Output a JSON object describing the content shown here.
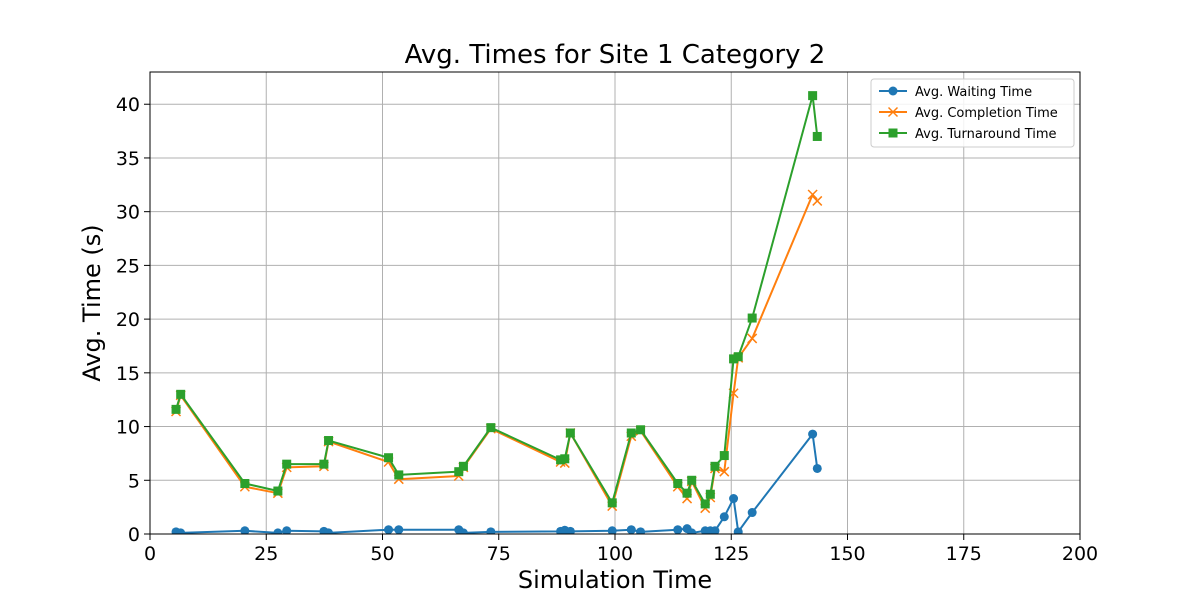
{
  "chart_data": {
    "type": "line",
    "title": "Avg. Times for Site 1 Category 2",
    "xlabel": "Simulation Time",
    "ylabel": "Avg. Time (s)",
    "xlim": [
      0,
      200
    ],
    "ylim": [
      0,
      43
    ],
    "xticks": [
      0,
      25,
      50,
      75,
      100,
      125,
      150,
      175,
      200
    ],
    "yticks": [
      0,
      5,
      10,
      15,
      20,
      25,
      30,
      35,
      40
    ],
    "grid": true,
    "legend_position": "top-right",
    "series": [
      {
        "name": "Avg. Waiting Time",
        "color": "#1f77b4",
        "marker": "circle",
        "x": [
          5.6,
          6.6,
          20.4,
          27.5,
          29.4,
          37.4,
          38.4,
          51.3,
          53.5,
          66.4,
          67.4,
          73.3,
          88.3,
          89.2,
          90.4,
          99.4,
          103.5,
          105.5,
          113.5,
          115.5,
          116.5,
          119.4,
          120.5,
          121.5,
          123.5,
          125.5,
          126.5,
          129.5,
          142.5,
          143.5
        ],
        "y": [
          0.2,
          0.1,
          0.3,
          0.1,
          0.3,
          0.25,
          0.1,
          0.4,
          0.4,
          0.4,
          0.1,
          0.2,
          0.25,
          0.35,
          0.25,
          0.3,
          0.4,
          0.2,
          0.4,
          0.5,
          0.1,
          0.3,
          0.3,
          0.3,
          1.6,
          3.3,
          0.2,
          2.0,
          9.3,
          6.1
        ]
      },
      {
        "name": "Avg. Completion Time",
        "color": "#ff7f0e",
        "marker": "x",
        "x": [
          5.6,
          6.6,
          20.4,
          27.5,
          29.4,
          37.4,
          38.4,
          51.3,
          53.5,
          66.4,
          67.4,
          73.3,
          88.3,
          89.2,
          90.4,
          99.4,
          103.5,
          105.5,
          113.5,
          115.5,
          116.5,
          119.4,
          120.5,
          121.5,
          123.5,
          125.5,
          126.5,
          129.5,
          142.5,
          143.5
        ],
        "y": [
          11.4,
          12.9,
          4.4,
          3.8,
          6.2,
          6.3,
          8.6,
          6.7,
          5.1,
          5.4,
          6.2,
          9.8,
          6.7,
          6.6,
          9.4,
          2.6,
          9.1,
          9.6,
          4.4,
          3.3,
          4.9,
          2.4,
          3.4,
          6.1,
          5.8,
          13.1,
          16.4,
          18.2,
          31.6,
          31.0
        ]
      },
      {
        "name": "Avg. Turnaround Time",
        "color": "#2ca02c",
        "marker": "square",
        "x": [
          5.6,
          6.6,
          20.4,
          27.5,
          29.4,
          37.4,
          38.4,
          51.3,
          53.5,
          66.4,
          67.4,
          73.3,
          88.3,
          89.2,
          90.4,
          99.4,
          103.5,
          105.5,
          113.5,
          115.5,
          116.5,
          119.4,
          120.5,
          121.5,
          123.5,
          125.5,
          126.5,
          129.5,
          142.5,
          143.5
        ],
        "y": [
          11.6,
          13.0,
          4.7,
          4.0,
          6.5,
          6.5,
          8.7,
          7.1,
          5.5,
          5.8,
          6.3,
          9.9,
          6.9,
          7.0,
          9.4,
          2.9,
          9.4,
          9.7,
          4.7,
          3.8,
          5.0,
          2.8,
          3.7,
          6.3,
          7.3,
          16.3,
          16.5,
          20.1,
          40.8,
          37.0
        ]
      }
    ]
  }
}
